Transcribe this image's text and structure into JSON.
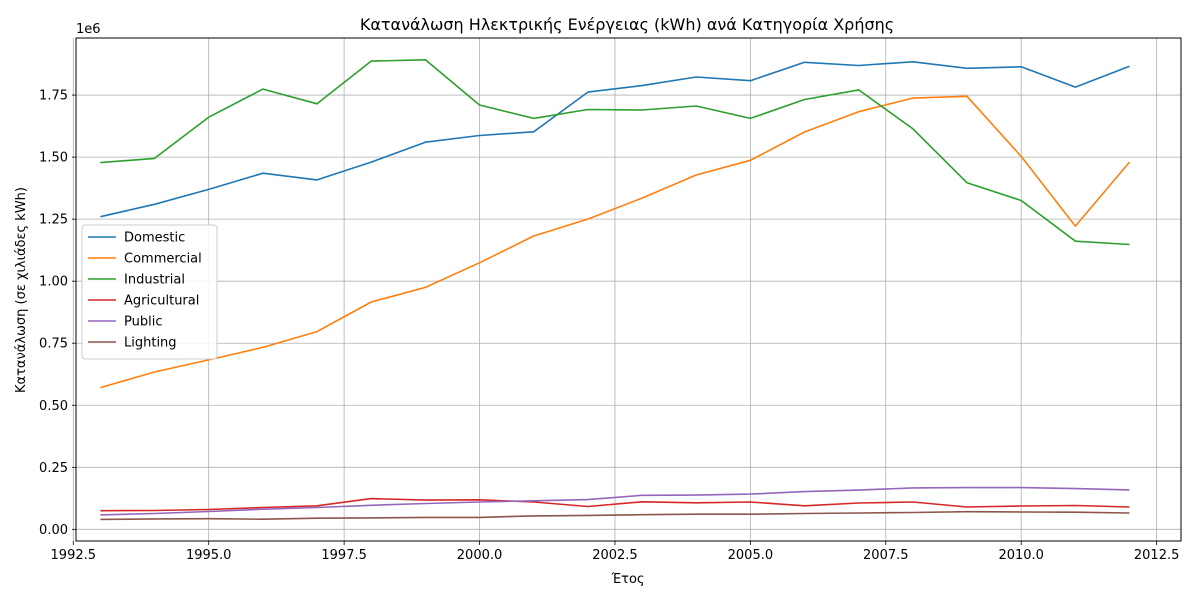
{
  "chart_data": {
    "type": "line",
    "title": "Κατανάλωση Ηλεκτρικής Ενέργειας (kWh) ανά Κατηγορία Χρήσης",
    "xlabel": "Έτος",
    "ylabel": "Κατανάλωση (σε χιλιάδες kWh)",
    "y_offset_label": "1e6",
    "xlim": [
      1992.55,
      2012.95
    ],
    "ylim": [
      -0.047,
      1.98
    ],
    "x_ticks": [
      1992.5,
      1995.0,
      1997.5,
      2000.0,
      2002.5,
      2005.0,
      2007.5,
      2010.0,
      2012.5
    ],
    "x_tick_labels": [
      "1992.5",
      "1995.0",
      "1997.5",
      "2000.0",
      "2002.5",
      "2005.0",
      "2007.5",
      "2010.0",
      "2012.5"
    ],
    "y_ticks": [
      0.0,
      0.25,
      0.5,
      0.75,
      1.0,
      1.25,
      1.5,
      1.75
    ],
    "y_tick_labels": [
      "0.00",
      "0.25",
      "0.50",
      "0.75",
      "1.00",
      "1.25",
      "1.50",
      "1.75"
    ],
    "grid": true,
    "legend_position": "center-left",
    "x": [
      1993,
      1994,
      1995,
      1996,
      1997,
      1998,
      1999,
      2000,
      2001,
      2002,
      2003,
      2004,
      2005,
      2006,
      2007,
      2008,
      2009,
      2010,
      2011,
      2012
    ],
    "series": [
      {
        "name": "Domestic",
        "color": "#1f77b4",
        "values": [
          1.26,
          1.31,
          1.37,
          1.435,
          1.408,
          1.48,
          1.56,
          1.587,
          1.602,
          1.762,
          1.788,
          1.823,
          1.808,
          1.882,
          1.869,
          1.884,
          1.858,
          1.864,
          1.782,
          1.866
        ]
      },
      {
        "name": "Commercial",
        "color": "#ff7f0e",
        "values": [
          0.571,
          0.634,
          0.683,
          0.733,
          0.797,
          0.916,
          0.975,
          1.074,
          1.182,
          1.25,
          1.335,
          1.428,
          1.487,
          1.601,
          1.683,
          1.738,
          1.745,
          1.503,
          1.222,
          1.48
        ]
      },
      {
        "name": "Industrial",
        "color": "#2ca02c",
        "values": [
          1.478,
          1.495,
          1.661,
          1.774,
          1.715,
          1.887,
          1.892,
          1.71,
          1.656,
          1.692,
          1.69,
          1.706,
          1.656,
          1.732,
          1.771,
          1.614,
          1.397,
          1.325,
          1.161,
          1.148
        ]
      },
      {
        "name": "Agricultural",
        "color": "#d62728",
        "values": [
          0.075,
          0.076,
          0.08,
          0.088,
          0.095,
          0.124,
          0.118,
          0.119,
          0.11,
          0.092,
          0.111,
          0.107,
          0.11,
          0.095,
          0.106,
          0.11,
          0.09,
          0.094,
          0.096,
          0.09
        ]
      },
      {
        "name": "Public",
        "color": "#9467bd",
        "values": [
          0.058,
          0.064,
          0.072,
          0.081,
          0.088,
          0.097,
          0.104,
          0.11,
          0.115,
          0.12,
          0.137,
          0.138,
          0.142,
          0.152,
          0.158,
          0.167,
          0.168,
          0.168,
          0.164,
          0.159
        ]
      },
      {
        "name": "Lighting",
        "color": "#8c564b",
        "values": [
          0.04,
          0.042,
          0.043,
          0.041,
          0.045,
          0.046,
          0.048,
          0.048,
          0.054,
          0.056,
          0.059,
          0.061,
          0.061,
          0.064,
          0.066,
          0.068,
          0.071,
          0.07,
          0.069,
          0.066
        ]
      }
    ]
  }
}
